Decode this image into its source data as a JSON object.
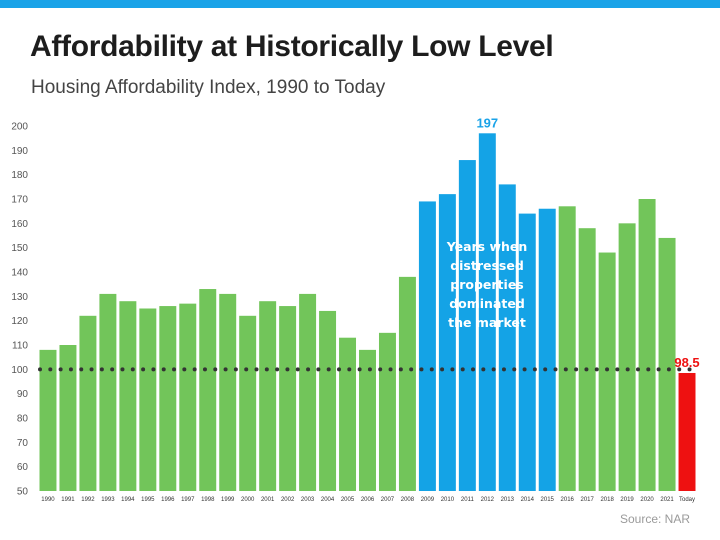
{
  "header": {
    "title": "Affordability at Historically Low Level",
    "subtitle": "Housing Affordability Index, 1990 to Today"
  },
  "source": "Source: NAR",
  "colors": {
    "accent_bar": "#1aa3e8",
    "normal": "#72c55a",
    "distressed": "#14a3e6",
    "today": "#ee1111",
    "reference_line": "#333333"
  },
  "annotation": {
    "text": "Years when\ndistressed\nproperties\ndominated\nthe market"
  },
  "chart_data": {
    "type": "bar",
    "title": "Affordability at Historically Low Level",
    "subtitle": "Housing Affordability Index, 1990 to Today",
    "categories": [
      "1990",
      "1991",
      "1992",
      "1993",
      "1994",
      "1995",
      "1996",
      "1997",
      "1998",
      "1999",
      "2000",
      "2001",
      "2002",
      "2003",
      "2004",
      "2005",
      "2006",
      "2007",
      "2008",
      "2009",
      "2010",
      "2011",
      "2012",
      "2013",
      "2014",
      "2015",
      "2016",
      "2017",
      "2018",
      "2019",
      "2020",
      "2021",
      "Today"
    ],
    "values": [
      108,
      110,
      122,
      131,
      128,
      125,
      126,
      127,
      133,
      131,
      122,
      128,
      126,
      131,
      124,
      113,
      108,
      115,
      138,
      169,
      172,
      186,
      197,
      176,
      164,
      166,
      167,
      158,
      148,
      160,
      170,
      154,
      98.5
    ],
    "bar_groups": [
      "normal",
      "normal",
      "normal",
      "normal",
      "normal",
      "normal",
      "normal",
      "normal",
      "normal",
      "normal",
      "normal",
      "normal",
      "normal",
      "normal",
      "normal",
      "normal",
      "normal",
      "normal",
      "normal",
      "distressed",
      "distressed",
      "distressed",
      "distressed",
      "distressed",
      "distressed",
      "distressed",
      "normal",
      "normal",
      "normal",
      "normal",
      "normal",
      "normal",
      "today"
    ],
    "data_labels": [
      {
        "category": "2012",
        "text": "197",
        "style": "peak"
      },
      {
        "category": "Today",
        "text": "98.5",
        "style": "today"
      }
    ],
    "reference_line": {
      "value": 100,
      "style": "dotted"
    },
    "ylim": [
      50,
      200
    ],
    "yticks": [
      50,
      60,
      70,
      80,
      90,
      100,
      110,
      120,
      130,
      140,
      150,
      160,
      170,
      180,
      190,
      200
    ],
    "xlabel": "",
    "ylabel": "",
    "grid": false,
    "legend": "none"
  }
}
